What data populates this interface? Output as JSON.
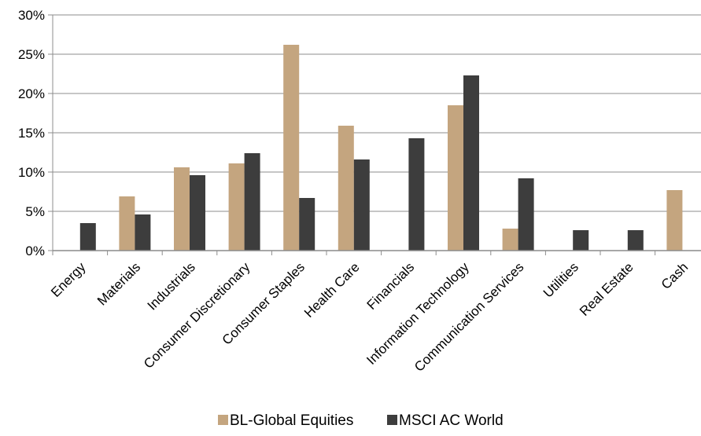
{
  "chart_data": {
    "type": "bar",
    "title": "",
    "xlabel": "",
    "ylabel": "",
    "categories": [
      "Energy",
      "Materials",
      "Industrials",
      "Consumer Discretionary",
      "Consumer Staples",
      "Health Care",
      "Financials",
      "Information Technology",
      "Communication Services",
      "Utilities",
      "Real Estate",
      "Cash"
    ],
    "series": [
      {
        "name": "BL-Global Equities",
        "color": "#c4a57f",
        "values": [
          0,
          6.9,
          10.6,
          11.1,
          26.2,
          15.9,
          0,
          18.5,
          2.8,
          0,
          0,
          7.7
        ]
      },
      {
        "name": "MSCI AC World",
        "color": "#3d3d3d",
        "values": [
          3.5,
          4.6,
          9.6,
          12.4,
          6.7,
          11.6,
          14.3,
          22.3,
          9.2,
          2.6,
          2.6,
          0
        ]
      }
    ],
    "ylim": [
      0,
      30
    ],
    "y_ticks": [
      "0%",
      "5%",
      "10%",
      "15%",
      "20%",
      "25%",
      "30%"
    ],
    "y_tick_values": [
      0,
      5,
      10,
      15,
      20,
      25,
      30
    ],
    "grid": true,
    "legend_position": "bottom"
  }
}
